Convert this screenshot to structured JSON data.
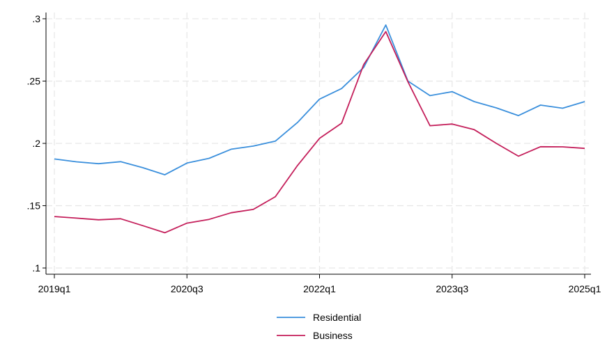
{
  "chart_data": {
    "type": "line",
    "x": [
      "2019q1",
      "2019q2",
      "2019q3",
      "2019q4",
      "2020q1",
      "2020q2",
      "2020q3",
      "2020q4",
      "2021q1",
      "2021q2",
      "2021q3",
      "2021q4",
      "2022q1",
      "2022q2",
      "2022q3",
      "2022q4",
      "2023q1",
      "2023q2",
      "2023q3",
      "2023q4",
      "2024q1",
      "2024q2",
      "2024q3",
      "2024q4",
      "2025q1"
    ],
    "series": [
      {
        "name": "Residential",
        "color": "#3a8fdc",
        "values": [
          0.1875,
          0.1852,
          0.1837,
          0.1853,
          0.1805,
          0.1748,
          0.1842,
          0.188,
          0.1953,
          0.1978,
          0.2018,
          0.2167,
          0.2355,
          0.244,
          0.261,
          0.295,
          0.25,
          0.2383,
          0.2415,
          0.2335,
          0.2285,
          0.2223,
          0.2307,
          0.2282,
          0.2335
        ]
      },
      {
        "name": "Business",
        "color": "#c41e5a",
        "values": [
          0.1413,
          0.14,
          0.1387,
          0.1395,
          0.134,
          0.1283,
          0.136,
          0.139,
          0.1443,
          0.147,
          0.1572,
          0.1822,
          0.204,
          0.2162,
          0.2633,
          0.2897,
          0.2495,
          0.2142,
          0.2155,
          0.211,
          0.2,
          0.1897,
          0.1973,
          0.1972,
          0.196
        ]
      }
    ],
    "ylim": [
      0.095,
      0.305
    ],
    "yticks": [
      0.1,
      0.15,
      0.2,
      0.25,
      0.3
    ],
    "ytick_labels": [
      ".1",
      ".15",
      ".2",
      ".25",
      ".3"
    ],
    "xticks": [
      "2019q1",
      "2020q3",
      "2022q1",
      "2023q3",
      "2025q1"
    ],
    "grid": true,
    "legend_position": "bottom"
  }
}
